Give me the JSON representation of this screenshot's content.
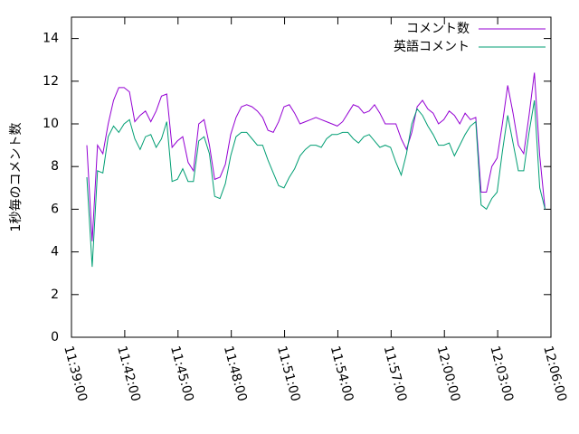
{
  "chart_data": {
    "type": "line",
    "ylabel": "1秒毎のコメント数",
    "x": [
      "11:39:52",
      "11:40:10",
      "11:40:28",
      "11:40:46",
      "11:41:04",
      "11:41:22",
      "11:41:40",
      "11:41:58",
      "11:42:16",
      "11:42:34",
      "11:42:52",
      "11:43:10",
      "11:43:28",
      "11:43:46",
      "11:44:04",
      "11:44:22",
      "11:44:40",
      "11:44:58",
      "11:45:16",
      "11:45:34",
      "11:45:52",
      "11:46:10",
      "11:46:28",
      "11:46:46",
      "11:47:04",
      "11:47:22",
      "11:47:40",
      "11:47:58",
      "11:48:16",
      "11:48:34",
      "11:48:52",
      "11:49:10",
      "11:49:28",
      "11:49:46",
      "11:50:04",
      "11:50:22",
      "11:50:40",
      "11:50:58",
      "11:51:16",
      "11:51:34",
      "11:51:52",
      "11:52:10",
      "11:52:28",
      "11:52:46",
      "11:53:04",
      "11:53:22",
      "11:53:40",
      "11:53:58",
      "11:54:16",
      "11:54:34",
      "11:54:52",
      "11:55:10",
      "11:55:28",
      "11:55:46",
      "11:56:04",
      "11:56:22",
      "11:56:40",
      "11:56:58",
      "11:57:16",
      "11:57:34",
      "11:57:52",
      "11:58:10",
      "11:58:28",
      "11:58:46",
      "11:59:04",
      "11:59:22",
      "11:59:40",
      "11:59:58",
      "12:00:16",
      "12:00:34",
      "12:00:52",
      "12:01:10",
      "12:01:28",
      "12:01:46",
      "12:02:04",
      "12:02:22",
      "12:02:40",
      "12:02:58",
      "12:03:16",
      "12:03:34",
      "12:03:52",
      "12:04:10",
      "12:04:28",
      "12:04:46",
      "12:05:04",
      "12:05:22",
      "12:05:40"
    ],
    "series": [
      {
        "name": "コメント数",
        "color": "#9400d3",
        "values": [
          9.0,
          4.5,
          9.0,
          8.6,
          10.0,
          11.1,
          11.7,
          11.7,
          11.5,
          10.1,
          10.4,
          10.6,
          10.1,
          10.6,
          11.3,
          11.4,
          8.9,
          9.2,
          9.4,
          8.2,
          7.8,
          10.0,
          10.2,
          9.0,
          7.4,
          7.5,
          8.1,
          9.5,
          10.3,
          10.8,
          10.9,
          10.8,
          10.6,
          10.3,
          9.7,
          9.6,
          10.1,
          10.8,
          10.9,
          10.5,
          10.0,
          10.1,
          10.2,
          10.3,
          10.2,
          10.1,
          10.0,
          9.9,
          10.1,
          10.5,
          10.9,
          10.8,
          10.5,
          10.6,
          10.9,
          10.5,
          10.0,
          10.0,
          10.0,
          9.3,
          8.8,
          9.6,
          10.8,
          11.1,
          10.7,
          10.5,
          10.0,
          10.2,
          10.6,
          10.4,
          10.0,
          10.5,
          10.2,
          10.3,
          6.8,
          6.8,
          8.0,
          8.4,
          10.0,
          11.8,
          10.5,
          9.0,
          8.6,
          10.4,
          12.4,
          8.5,
          6.0
        ]
      },
      {
        "name": "英語コメント",
        "color": "#009e73",
        "values": [
          7.5,
          3.3,
          7.8,
          7.7,
          9.4,
          9.9,
          9.6,
          10.0,
          10.2,
          9.3,
          8.8,
          9.4,
          9.5,
          8.9,
          9.3,
          10.1,
          7.3,
          7.4,
          7.9,
          7.3,
          7.3,
          9.2,
          9.4,
          8.6,
          6.6,
          6.5,
          7.2,
          8.5,
          9.4,
          9.6,
          9.6,
          9.3,
          9.0,
          9.0,
          8.3,
          7.7,
          7.1,
          7.0,
          7.5,
          7.9,
          8.5,
          8.8,
          9.0,
          9.0,
          8.9,
          9.3,
          9.5,
          9.5,
          9.6,
          9.6,
          9.3,
          9.1,
          9.4,
          9.5,
          9.2,
          8.9,
          9.0,
          8.9,
          8.2,
          7.6,
          8.6,
          10.0,
          10.7,
          10.4,
          9.9,
          9.5,
          9.0,
          9.0,
          9.1,
          8.5,
          9.0,
          9.5,
          9.9,
          10.1,
          6.2,
          6.0,
          6.5,
          6.8,
          8.7,
          10.4,
          9.1,
          7.8,
          7.8,
          9.6,
          11.1,
          7.0,
          6.0
        ]
      }
    ],
    "xlim": [
      "11:39:00",
      "12:06:00"
    ],
    "xticks": [
      "11:39:00",
      "11:42:00",
      "11:45:00",
      "11:48:00",
      "11:51:00",
      "11:54:00",
      "11:57:00",
      "12:00:00",
      "12:03:00",
      "12:06:00"
    ],
    "ylim": [
      0,
      15
    ],
    "yticks": [
      0,
      2,
      4,
      6,
      8,
      10,
      12,
      14
    ],
    "legend": "top-right"
  }
}
